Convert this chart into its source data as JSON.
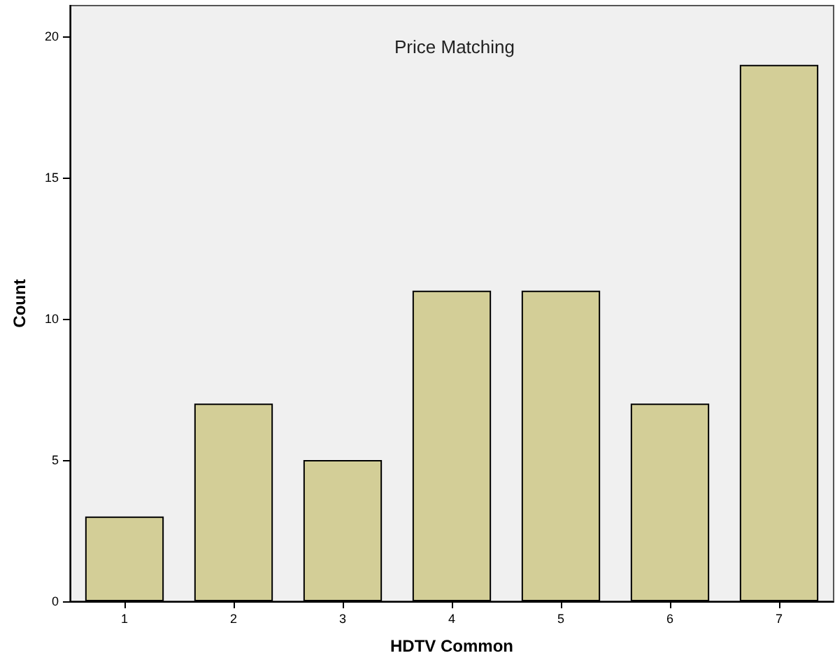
{
  "chart_data": {
    "type": "bar",
    "title": "Price Matching",
    "xlabel": "HDTV Common",
    "ylabel": "Count",
    "categories": [
      "1",
      "2",
      "3",
      "4",
      "5",
      "6",
      "7"
    ],
    "values": [
      3,
      7,
      5,
      11,
      11,
      7,
      19
    ],
    "color": "#d3ce97",
    "ylim": [
      0,
      21.1
    ],
    "yticks": [
      0,
      5,
      10,
      15,
      20
    ],
    "grid": false
  }
}
